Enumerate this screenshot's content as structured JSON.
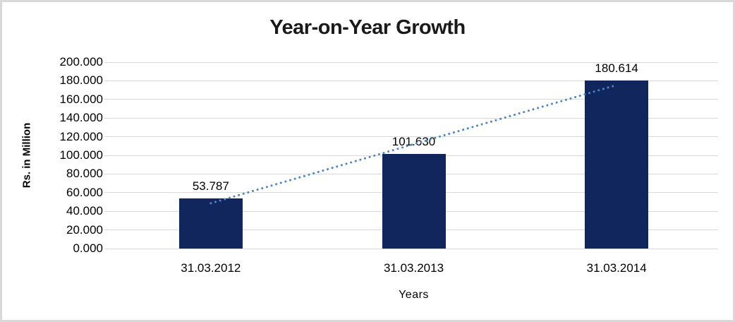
{
  "chart_data": {
    "type": "bar",
    "title": "Year-on-Year Growth",
    "xlabel": "Years",
    "ylabel": "Rs. in Million",
    "categories": [
      "31.03.2012",
      "31.03.2013",
      "31.03.2014"
    ],
    "values": [
      53.787,
      101.63,
      180.614
    ],
    "data_labels": [
      "53.787",
      "101.630",
      "180.614"
    ],
    "y_tick_labels": [
      "0.000",
      "20.000",
      "40.000",
      "60.000",
      "80.000",
      "100.000",
      "120.000",
      "140.000",
      "160.000",
      "180.000",
      "200.000"
    ],
    "ylim": [
      0,
      200
    ],
    "y_tick_step": 20,
    "grid": true,
    "legend": "none",
    "trendline": {
      "type": "linear",
      "style": "dotted"
    },
    "colors": {
      "bar": "#12265E",
      "trendline": "#4A86C8",
      "gridline": "#D9D9D9",
      "text": "#000000",
      "frame_border": "#D8D8D8",
      "background": "#FFFFFF"
    }
  }
}
